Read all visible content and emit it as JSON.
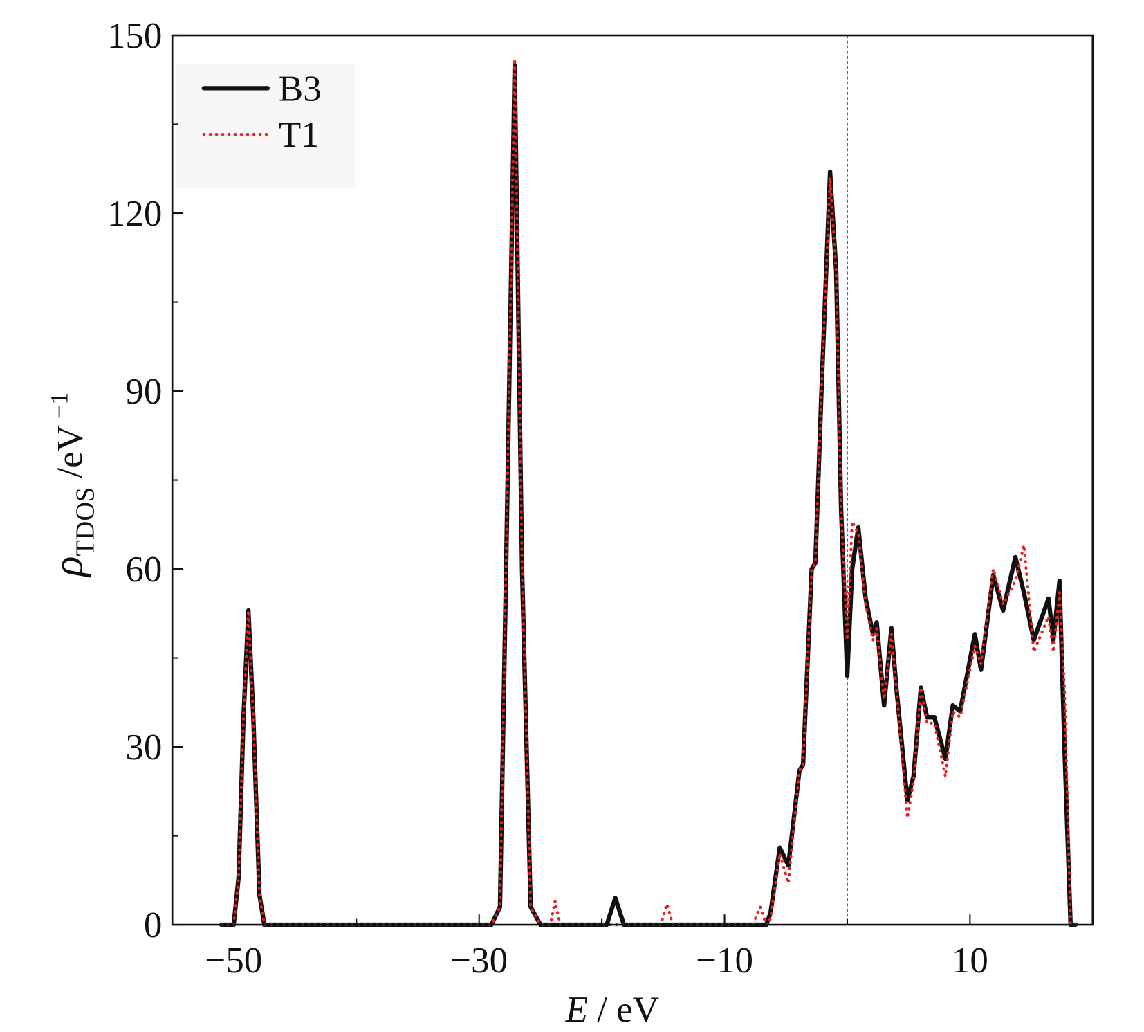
{
  "chart_data": {
    "type": "line",
    "xlabel": {
      "symbol": "E",
      "unit": " / eV"
    },
    "ylabel": {
      "symbol": "ρ",
      "subscript": "TDOS",
      "unit": " /eV",
      "superscript": " −1"
    },
    "xlim": [
      -55,
      20
    ],
    "ylim": [
      0,
      150
    ],
    "xticks": [
      {
        "value": -50,
        "label": "−50"
      },
      {
        "value": -30,
        "label": "−30"
      },
      {
        "value": -10,
        "label": "−10"
      },
      10
    ],
    "xminorticks": [
      -40,
      -20,
      0
    ],
    "yticks": [
      0,
      30,
      60,
      90,
      120,
      150
    ],
    "yminorticks": [
      15,
      45,
      75,
      105,
      135
    ],
    "vline": 0,
    "legend": "upper left",
    "x": [
      -51,
      -50,
      -49.6,
      -49.2,
      -48.8,
      -48.4,
      -47.9,
      -47.5,
      -29,
      -28.3,
      -27.8,
      -27.1,
      -26.5,
      -25.8,
      -25,
      -24.2,
      -23.8,
      -23.4,
      -19.6,
      -18.9,
      -18.2,
      -15.2,
      -14.7,
      -14.2,
      -7.7,
      -7.1,
      -6.6,
      -6.25,
      -5.5,
      -4.8,
      -3.9,
      -3.6,
      -2.9,
      -2.6,
      -2.1,
      -1.4,
      -0.9,
      -0.5,
      0,
      0.4,
      0.9,
      1.5,
      2.1,
      2.4,
      3.0,
      3.6,
      4.0,
      4.9,
      5.4,
      6.0,
      6.5,
      7.1,
      8.0,
      8.6,
      9.2,
      10.4,
      10.9,
      11.9,
      12.7,
      13.7,
      14.4,
      15.2,
      16.4,
      16.8,
      17.3,
      17.7,
      18.2,
      18.6
    ],
    "series": [
      {
        "name": "B3",
        "color": "#111111",
        "style": "solid",
        "values": [
          0,
          0,
          8,
          35,
          53,
          35,
          5,
          0,
          0,
          3,
          60,
          145,
          60,
          3,
          0,
          0,
          0,
          0,
          0,
          4.5,
          0,
          0,
          0,
          0,
          0,
          0,
          0,
          2,
          13,
          10,
          26,
          27,
          60,
          61,
          90,
          127,
          110,
          70,
          42,
          60,
          67,
          55,
          49,
          51,
          37,
          50,
          40,
          21,
          25,
          40,
          35,
          35,
          28,
          37,
          36,
          49,
          43,
          59,
          53,
          62,
          56,
          48,
          55,
          48,
          58,
          30,
          0,
          0
        ]
      },
      {
        "name": "T1",
        "color": "#e8201e",
        "style": "dotted",
        "values": [
          0,
          0,
          8,
          35,
          53,
          35,
          5,
          0,
          0,
          3,
          61,
          146,
          61,
          3,
          0,
          0,
          4,
          0,
          0,
          0,
          0,
          0,
          3.5,
          0,
          0,
          3,
          0,
          1,
          12,
          7,
          26,
          27,
          60,
          61,
          90,
          126,
          110,
          70,
          48,
          68,
          66,
          54,
          48,
          50,
          38,
          49,
          40,
          18,
          24,
          40,
          34,
          34,
          25,
          36,
          35,
          47,
          44,
          60,
          54,
          58,
          64,
          46,
          52,
          46,
          56,
          40,
          0,
          0
        ]
      }
    ]
  }
}
